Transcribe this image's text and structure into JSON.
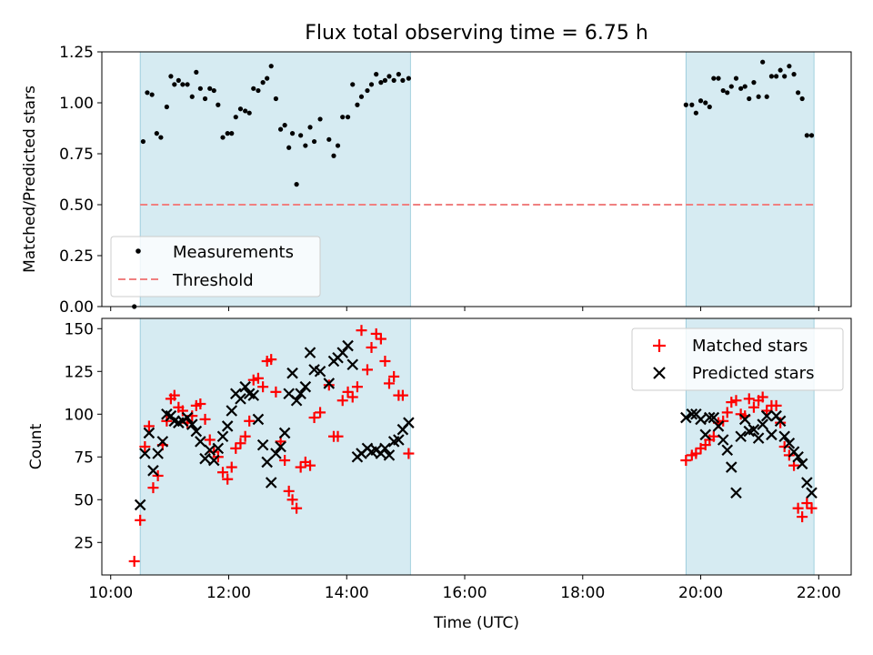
{
  "chart_data": [
    {
      "type": "scatter",
      "title": "Flux total observing time = 6.75 h",
      "xlabel": "",
      "ylabel": "Matched/Predicted stars",
      "ylim": [
        0,
        1.25
      ],
      "yticks": [
        "0.00",
        "0.25",
        "0.50",
        "0.75",
        "1.00",
        "1.25"
      ],
      "legend_position": "lower-left",
      "threshold": {
        "name": "Threshold",
        "value": 0.5,
        "x_range": [
          10.5,
          21.92
        ],
        "color": "#f08080"
      },
      "observing_windows": [
        [
          10.5,
          15.08
        ],
        [
          19.75,
          21.92
        ]
      ],
      "series": [
        {
          "name": "Measurements",
          "color": "#000000",
          "x": [
            10.4,
            10.55,
            10.62,
            10.7,
            10.78,
            10.85,
            10.95,
            11.02,
            11.08,
            11.15,
            11.22,
            11.3,
            11.38,
            11.45,
            11.52,
            11.6,
            11.68,
            11.75,
            11.82,
            11.9,
            11.98,
            12.05,
            12.12,
            12.2,
            12.28,
            12.35,
            12.42,
            12.5,
            12.58,
            12.65,
            12.72,
            12.8,
            12.88,
            12.95,
            13.02,
            13.08,
            13.15,
            13.22,
            13.3,
            13.38,
            13.45,
            13.55,
            13.7,
            13.78,
            13.85,
            13.93,
            14.02,
            14.1,
            14.18,
            14.25,
            14.35,
            14.42,
            14.5,
            14.58,
            14.65,
            14.72,
            14.8,
            14.88,
            14.95,
            15.05,
            19.75,
            19.85,
            19.92,
            20.0,
            20.08,
            20.15,
            20.22,
            20.3,
            20.38,
            20.45,
            20.52,
            20.6,
            20.68,
            20.75,
            20.82,
            20.9,
            20.98,
            21.05,
            21.12,
            21.2,
            21.28,
            21.35,
            21.42,
            21.5,
            21.58,
            21.65,
            21.72,
            21.8,
            21.88
          ],
          "values": [
            0.0,
            0.81,
            1.05,
            1.04,
            0.85,
            0.83,
            0.98,
            1.13,
            1.09,
            1.11,
            1.09,
            1.09,
            1.03,
            1.15,
            1.07,
            1.02,
            1.07,
            1.06,
            0.99,
            0.83,
            0.85,
            0.85,
            0.93,
            0.97,
            0.96,
            0.95,
            1.07,
            1.06,
            1.1,
            1.12,
            1.18,
            1.02,
            0.87,
            0.89,
            0.78,
            0.85,
            0.6,
            0.84,
            0.79,
            0.88,
            0.81,
            0.92,
            0.82,
            0.74,
            0.79,
            0.93,
            0.93,
            1.09,
            0.99,
            1.03,
            1.06,
            1.09,
            1.14,
            1.1,
            1.11,
            1.13,
            1.11,
            1.14,
            1.11,
            1.12,
            0.99,
            0.99,
            0.95,
            1.01,
            1.0,
            0.98,
            1.12,
            1.12,
            1.06,
            1.05,
            1.08,
            1.12,
            1.07,
            1.08,
            1.02,
            1.1,
            1.03,
            1.2,
            1.03,
            1.13,
            1.13,
            1.16,
            1.13,
            1.18,
            1.14,
            1.05,
            1.02,
            0.84,
            0.84
          ]
        }
      ]
    },
    {
      "type": "scatter",
      "title": "",
      "xlabel": "Time (UTC)",
      "ylabel": "Count",
      "xlim": [
        9.85,
        22.55
      ],
      "ylim": [
        6,
        156
      ],
      "xticks": [
        "10:00",
        "12:00",
        "14:00",
        "16:00",
        "18:00",
        "20:00",
        "22:00"
      ],
      "yticks": [
        "25",
        "50",
        "75",
        "100",
        "125",
        "150"
      ],
      "legend_position": "upper-right",
      "observing_windows": [
        [
          10.5,
          15.08
        ],
        [
          19.75,
          21.92
        ]
      ],
      "series": [
        {
          "name": "Matched stars",
          "marker": "plus",
          "color": "#ff0000",
          "x": [
            10.4,
            10.5,
            10.58,
            10.65,
            10.72,
            10.8,
            10.88,
            10.95,
            11.02,
            11.08,
            11.15,
            11.22,
            11.3,
            11.38,
            11.45,
            11.52,
            11.6,
            11.68,
            11.75,
            11.82,
            11.9,
            11.98,
            12.05,
            12.12,
            12.2,
            12.28,
            12.35,
            12.42,
            12.5,
            12.58,
            12.65,
            12.72,
            12.8,
            12.88,
            12.95,
            13.02,
            13.08,
            13.15,
            13.22,
            13.3,
            13.38,
            13.45,
            13.55,
            13.7,
            13.78,
            13.85,
            13.93,
            14.02,
            14.1,
            14.18,
            14.25,
            14.35,
            14.42,
            14.5,
            14.58,
            14.65,
            14.72,
            14.8,
            14.88,
            14.95,
            15.05,
            19.75,
            19.85,
            19.92,
            20.0,
            20.08,
            20.15,
            20.22,
            20.3,
            20.38,
            20.45,
            20.52,
            20.6,
            20.68,
            20.75,
            20.82,
            20.9,
            20.98,
            21.05,
            21.12,
            21.2,
            21.28,
            21.35,
            21.42,
            21.5,
            21.58,
            21.65,
            21.72,
            21.8,
            21.88
          ],
          "values": [
            14,
            38,
            81,
            93,
            57,
            64,
            82,
            96,
            109,
            111,
            104,
            102,
            95,
            99,
            105,
            106,
            97,
            85,
            78,
            75,
            66,
            62,
            69,
            80,
            83,
            87,
            96,
            120,
            121,
            116,
            131,
            132,
            113,
            84,
            73,
            55,
            50,
            45,
            69,
            72,
            70,
            98,
            101,
            117,
            87,
            87,
            108,
            113,
            110,
            116,
            149,
            126,
            139,
            147,
            144,
            131,
            118,
            122,
            111,
            111,
            77,
            73,
            76,
            77,
            80,
            82,
            85,
            87,
            95,
            96,
            101,
            107,
            108,
            100,
            99,
            109,
            104,
            108,
            110,
            102,
            105,
            105,
            95,
            81,
            76,
            70,
            45,
            40,
            48,
            45
          ],
          "note": ""
        },
        {
          "name": "Predicted stars",
          "marker": "x",
          "color": "#000000",
          "x": [
            10.5,
            10.58,
            10.65,
            10.72,
            10.8,
            10.88,
            10.95,
            11.02,
            11.08,
            11.15,
            11.22,
            11.3,
            11.38,
            11.45,
            11.52,
            11.6,
            11.68,
            11.75,
            11.82,
            11.9,
            11.98,
            12.05,
            12.12,
            12.2,
            12.28,
            12.35,
            12.42,
            12.5,
            12.58,
            12.65,
            12.72,
            12.8,
            12.88,
            12.95,
            13.02,
            13.08,
            13.15,
            13.22,
            13.3,
            13.38,
            13.45,
            13.55,
            13.7,
            13.78,
            13.85,
            13.93,
            14.02,
            14.1,
            14.18,
            14.25,
            14.35,
            14.42,
            14.5,
            14.58,
            14.65,
            14.72,
            14.8,
            14.88,
            14.95,
            15.05,
            19.75,
            19.85,
            19.92,
            20.0,
            20.08,
            20.15,
            20.22,
            20.3,
            20.38,
            20.45,
            20.52,
            20.6,
            20.68,
            20.75,
            20.82,
            20.9,
            20.98,
            21.05,
            21.12,
            21.2,
            21.28,
            21.35,
            21.42,
            21.5,
            21.58,
            21.65,
            21.72,
            21.8,
            21.88
          ],
          "values": [
            47,
            77,
            89,
            67,
            77,
            84,
            100,
            99,
            96,
            95,
            96,
            98,
            94,
            90,
            84,
            74,
            79,
            73,
            80,
            87,
            93,
            102,
            112,
            109,
            116,
            112,
            111,
            97,
            82,
            72,
            60,
            77,
            81,
            89,
            112,
            124,
            108,
            112,
            116,
            136,
            126,
            125,
            118,
            131,
            133,
            136,
            140,
            129,
            75,
            77,
            80,
            78,
            79,
            77,
            80,
            76,
            84,
            85,
            91,
            95,
            98,
            100,
            100,
            97,
            88,
            98,
            98,
            93,
            85,
            79,
            69,
            54,
            87,
            97,
            90,
            91,
            86,
            94,
            99,
            88,
            99,
            96,
            87,
            83,
            78,
            75,
            71,
            60,
            54
          ],
          "note": ""
        }
      ]
    }
  ]
}
